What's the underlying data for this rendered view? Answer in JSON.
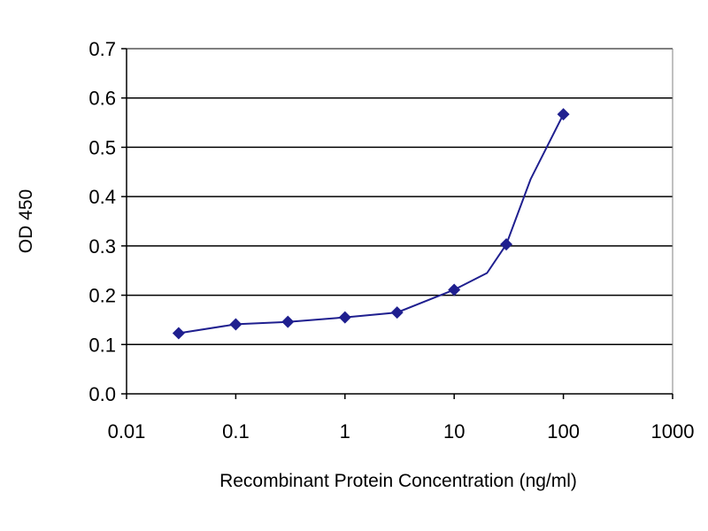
{
  "chart_data": {
    "type": "line",
    "xlabel": "Recombinant Protein Concentration (ng/ml)",
    "ylabel": "OD 450",
    "x_scale": "log",
    "xlim": [
      0.01,
      1000
    ],
    "ylim": [
      0.0,
      0.7
    ],
    "x_ticks": [
      "0.01",
      "0.1",
      "1",
      "10",
      "100",
      "1000"
    ],
    "y_ticks": [
      "0.0",
      "0.1",
      "0.2",
      "0.3",
      "0.4",
      "0.5",
      "0.6",
      "0.7"
    ],
    "grid": "horizontal",
    "legend": "none",
    "colors": {
      "plot_background": "#ffffff",
      "grid": "#000000",
      "series": "#1f1f8f",
      "frame": "#808080"
    },
    "series": [
      {
        "x": [
          0.03,
          0.1,
          0.3,
          1,
          3,
          10,
          20,
          30,
          50,
          100
        ],
        "y": [
          0.123,
          0.141,
          0.146,
          0.155,
          0.165,
          0.211,
          0.245,
          0.303,
          0.435,
          0.567
        ],
        "markers": [
          true,
          true,
          true,
          true,
          true,
          true,
          false,
          true,
          false,
          true
        ]
      }
    ]
  }
}
